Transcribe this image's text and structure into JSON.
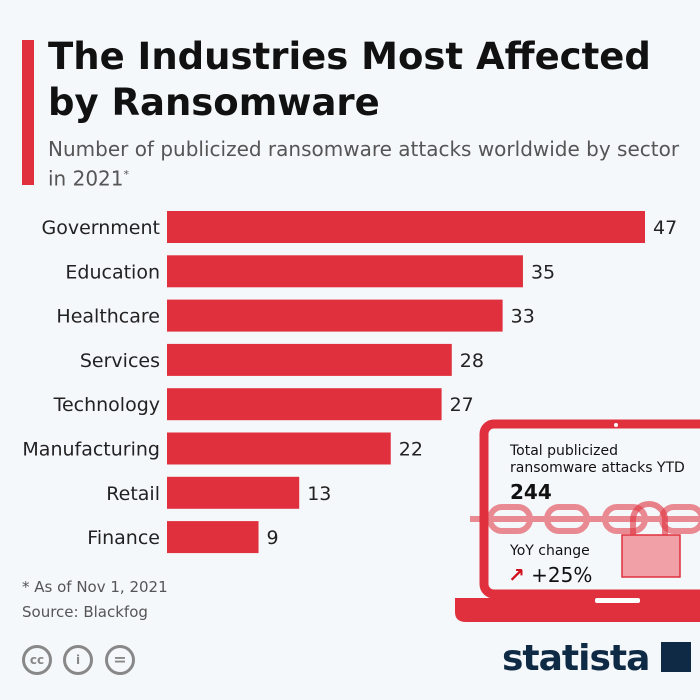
{
  "title": "The Industries Most Affected by Ransomware",
  "subtitle": "Number of publicized ransomware attacks worldwide by sector in 2021",
  "subtitle_mark": "*",
  "colors": {
    "bar": "#e0303e",
    "background": "#f5f8fb",
    "logo": "#0f2a44"
  },
  "chart_data": {
    "type": "bar",
    "orientation": "horizontal",
    "categories": [
      "Government",
      "Education",
      "Healthcare",
      "Services",
      "Technology",
      "Manufacturing",
      "Retail",
      "Finance"
    ],
    "values": [
      47,
      35,
      33,
      28,
      27,
      22,
      13,
      9
    ],
    "xlim": [
      0,
      47
    ],
    "grid": false,
    "data_labels": true
  },
  "callout": {
    "label": "Total publicized ransomware attacks YTD",
    "total": "244",
    "yoy_label": "YoY change",
    "yoy_value": "+25%",
    "icons": [
      "laptop-icon",
      "chain-icon",
      "padlock-icon",
      "arrow-up-right-icon"
    ]
  },
  "footnote": "* As of Nov 1, 2021",
  "source": "Source: Blackfog",
  "license_icons": [
    "cc-icon",
    "attribution-icon",
    "no-derivatives-icon"
  ],
  "logo": "statista"
}
